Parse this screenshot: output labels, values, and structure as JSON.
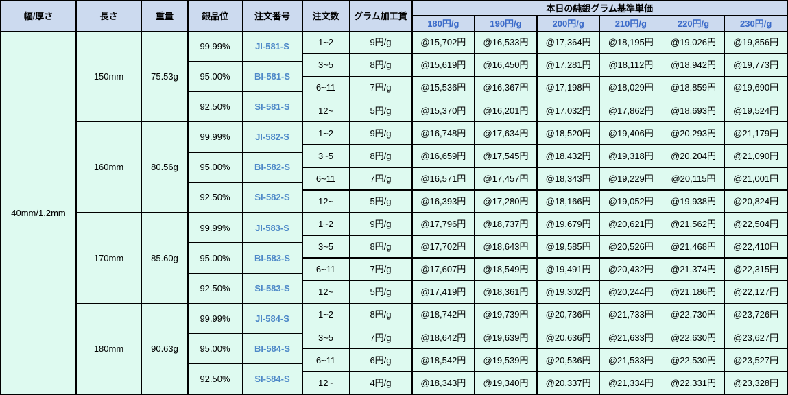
{
  "table": {
    "headers": {
      "width_thickness": "幅/厚さ",
      "length": "長さ",
      "weight": "重量",
      "purity": "銀品位",
      "order_no": "注文番号",
      "order_qty": "注文数",
      "fee": "グラム加工賃",
      "base_price_group": "本日の純銀グラム基準単価",
      "price_columns": [
        "180円/g",
        "190円/g",
        "200円/g",
        "210円/g",
        "220円/g",
        "230円/g"
      ]
    },
    "width_thickness_value": "40mm/1.2mm",
    "blocks": [
      {
        "length": "150mm",
        "weight": "75.53g",
        "purities": [
          {
            "purity": "99.99%",
            "order_no": "JI-581-S"
          },
          {
            "purity": "95.00%",
            "order_no": "BI-581-S"
          },
          {
            "purity": "92.50%",
            "order_no": "SI-581-S"
          }
        ],
        "rows": [
          {
            "qty": "1~2",
            "fee": "9円/g",
            "prices": [
              "@15,702円",
              "@16,533円",
              "@17,364円",
              "@18,195円",
              "@19,026円",
              "@19,856円"
            ]
          },
          {
            "qty": "3~5",
            "fee": "8円/g",
            "prices": [
              "@15,619円",
              "@16,450円",
              "@17,281円",
              "@18,112円",
              "@18,942円",
              "@19,773円"
            ]
          },
          {
            "qty": "6~11",
            "fee": "7円/g",
            "prices": [
              "@15,536円",
              "@16,367円",
              "@17,198円",
              "@18,029円",
              "@18,859円",
              "@19,690円"
            ]
          },
          {
            "qty": "12~",
            "fee": "5円/g",
            "prices": [
              "@15,370円",
              "@16,201円",
              "@17,032円",
              "@17,862円",
              "@18,693円",
              "@19,524円"
            ]
          }
        ]
      },
      {
        "length": "160mm",
        "weight": "80.56g",
        "purities": [
          {
            "purity": "99.99%",
            "order_no": "JI-582-S"
          },
          {
            "purity": "95.00%",
            "order_no": "BI-582-S"
          },
          {
            "purity": "92.50%",
            "order_no": "SI-582-S"
          }
        ],
        "rows": [
          {
            "qty": "1~2",
            "fee": "9円/g",
            "prices": [
              "@16,748円",
              "@17,634円",
              "@18,520円",
              "@19,406円",
              "@20,293円",
              "@21,179円"
            ]
          },
          {
            "qty": "3~5",
            "fee": "8円/g",
            "prices": [
              "@16,659円",
              "@17,545円",
              "@18,432円",
              "@19,318円",
              "@20,204円",
              "@21,090円"
            ]
          },
          {
            "qty": "6~11",
            "fee": "7円/g",
            "prices": [
              "@16,571円",
              "@17,457円",
              "@18,343円",
              "@19,229円",
              "@20,115円",
              "@21,001円"
            ]
          },
          {
            "qty": "12~",
            "fee": "5円/g",
            "prices": [
              "@16,393円",
              "@17,280円",
              "@18,166円",
              "@19,052円",
              "@19,938円",
              "@20,824円"
            ]
          }
        ]
      },
      {
        "length": "170mm",
        "weight": "85.60g",
        "purities": [
          {
            "purity": "99.99%",
            "order_no": "JI-583-S"
          },
          {
            "purity": "95.00%",
            "order_no": "BI-583-S"
          },
          {
            "purity": "92.50%",
            "order_no": "SI-583-S"
          }
        ],
        "rows": [
          {
            "qty": "1~2",
            "fee": "9円/g",
            "prices": [
              "@17,796円",
              "@18,737円",
              "@19,679円",
              "@20,621円",
              "@21,562円",
              "@22,504円"
            ]
          },
          {
            "qty": "3~5",
            "fee": "8円/g",
            "prices": [
              "@17,702円",
              "@18,643円",
              "@19,585円",
              "@20,526円",
              "@21,468円",
              "@22,410円"
            ]
          },
          {
            "qty": "6~11",
            "fee": "7円/g",
            "prices": [
              "@17,607円",
              "@18,549円",
              "@19,491円",
              "@20,432円",
              "@21,374円",
              "@22,315円"
            ]
          },
          {
            "qty": "12~",
            "fee": "5円/g",
            "prices": [
              "@17,419円",
              "@18,361円",
              "@19,302円",
              "@20,244円",
              "@21,186円",
              "@22,127円"
            ]
          }
        ]
      },
      {
        "length": "180mm",
        "weight": "90.63g",
        "purities": [
          {
            "purity": "99.99%",
            "order_no": "JI-584-S"
          },
          {
            "purity": "95.00%",
            "order_no": "BI-584-S"
          },
          {
            "purity": "92.50%",
            "order_no": "SI-584-S"
          }
        ],
        "rows": [
          {
            "qty": "1~2",
            "fee": "8円/g",
            "prices": [
              "@18,742円",
              "@19,739円",
              "@20,736円",
              "@21,733円",
              "@22,730円",
              "@23,726円"
            ]
          },
          {
            "qty": "3~5",
            "fee": "7円/g",
            "prices": [
              "@18,642円",
              "@19,639円",
              "@20,636円",
              "@21,633円",
              "@22,630円",
              "@23,627円"
            ]
          },
          {
            "qty": "6~11",
            "fee": "6円/g",
            "prices": [
              "@18,542円",
              "@19,539円",
              "@20,536円",
              "@21,533円",
              "@22,530円",
              "@23,527円"
            ]
          },
          {
            "qty": "12~",
            "fee": "4円/g",
            "prices": [
              "@18,343円",
              "@19,340円",
              "@20,337円",
              "@21,334円",
              "@22,331円",
              "@23,328円"
            ]
          }
        ]
      }
    ],
    "colors": {
      "header_bg": "#ccdaef",
      "body_bg": "#defaf0",
      "price_header_text": "#3c6bc9",
      "order_no_text": "#4e89c8",
      "grid_line": "#000000"
    }
  }
}
